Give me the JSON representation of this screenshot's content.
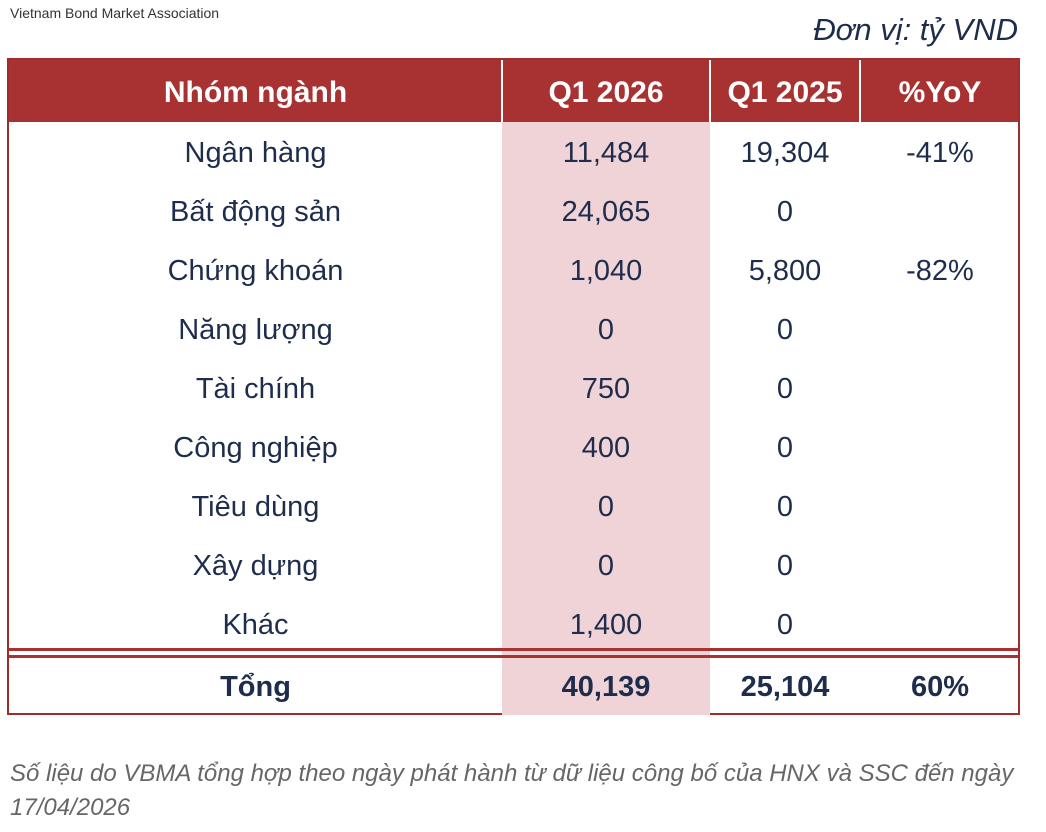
{
  "source": "Vietnam Bond Market Association",
  "unit": "Đơn vị: tỷ VND",
  "headers": {
    "sector": "Nhóm ngành",
    "q1_2026": "Q1 2026",
    "q1_2025": "Q1 2025",
    "yoy": "%YoY"
  },
  "rows": [
    {
      "sector": "Ngân hàng",
      "q1_2026": "11,484",
      "q1_2025": "19,304",
      "yoy": "-41%"
    },
    {
      "sector": "Bất động sản",
      "q1_2026": "24,065",
      "q1_2025": "0",
      "yoy": ""
    },
    {
      "sector": "Chứng khoán",
      "q1_2026": "1,040",
      "q1_2025": "5,800",
      "yoy": "-82%"
    },
    {
      "sector": "Năng lượng",
      "q1_2026": "0",
      "q1_2025": "0",
      "yoy": ""
    },
    {
      "sector": "Tài chính",
      "q1_2026": "750",
      "q1_2025": "0",
      "yoy": ""
    },
    {
      "sector": "Công nghiệp",
      "q1_2026": "400",
      "q1_2025": "0",
      "yoy": ""
    },
    {
      "sector": "Tiêu dùng",
      "q1_2026": "0",
      "q1_2025": "0",
      "yoy": ""
    },
    {
      "sector": "Xây dựng",
      "q1_2026": "0",
      "q1_2025": "0",
      "yoy": ""
    },
    {
      "sector": "Khác",
      "q1_2026": "1,400",
      "q1_2025": "0",
      "yoy": ""
    }
  ],
  "total": {
    "sector": "Tổng",
    "q1_2026": "40,139",
    "q1_2025": "25,104",
    "yoy": "60%"
  },
  "footnote": "Số liệu do VBMA tổng hợp theo ngày phát hành từ dữ liệu công bố của HNX và SSC đến ngày 17/04/2026",
  "colors": {
    "header_bg": "#a83232",
    "highlight_col": "#f0d3d6",
    "text": "#1f2d4d"
  }
}
